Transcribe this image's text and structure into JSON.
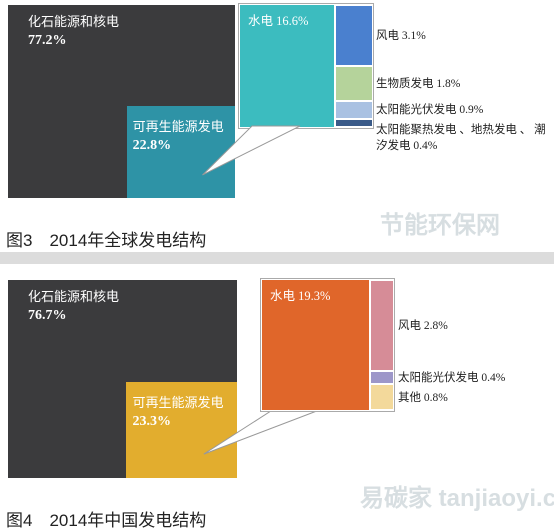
{
  "chart_data": [
    {
      "type": "treemap",
      "title": "图3　2014年全球发电结构",
      "categories": [
        "化石能源和核电",
        "可再生能源发电"
      ],
      "values": [
        77.2,
        22.8
      ],
      "value_labels": [
        "77.2%",
        "22.8%"
      ],
      "colors": [
        "#3b3b3d",
        "#2e93a6"
      ],
      "breakdown": {
        "categories": [
          "水电",
          "风电",
          "生物质发电",
          "太阳能光伏发电",
          "太阳能聚热发电 、地热发电 、 潮汐发电"
        ],
        "values": [
          16.6,
          3.1,
          1.8,
          0.9,
          0.4
        ],
        "value_labels": [
          "16.6%",
          "3.1%",
          "1.8%",
          "0.9%",
          "0.4%"
        ],
        "colors": [
          "#3cbcbf",
          "#4a80cf",
          "#b5d39b",
          "#a9c1e2",
          "#3a5a88"
        ]
      },
      "watermark": "节能环保网"
    },
    {
      "type": "treemap",
      "title": "图4　2014年中国发电结构",
      "categories": [
        "化石能源和核电",
        "可再生能源发电"
      ],
      "values": [
        76.7,
        23.3
      ],
      "value_labels": [
        "76.7%",
        "23.3%"
      ],
      "colors": [
        "#3b3b3d",
        "#e2ad2e"
      ],
      "breakdown": {
        "categories": [
          "水电",
          "风电",
          "太阳能光伏发电",
          "其他"
        ],
        "values": [
          19.3,
          2.8,
          0.4,
          0.8
        ],
        "value_labels": [
          "19.3%",
          "2.8%",
          "0.4%",
          "0.8%"
        ],
        "colors": [
          "#e0662a",
          "#d68c97",
          "#9d97c9",
          "#f3d99b"
        ]
      },
      "watermark": "易碳家 tanjiaoyi.com"
    }
  ]
}
